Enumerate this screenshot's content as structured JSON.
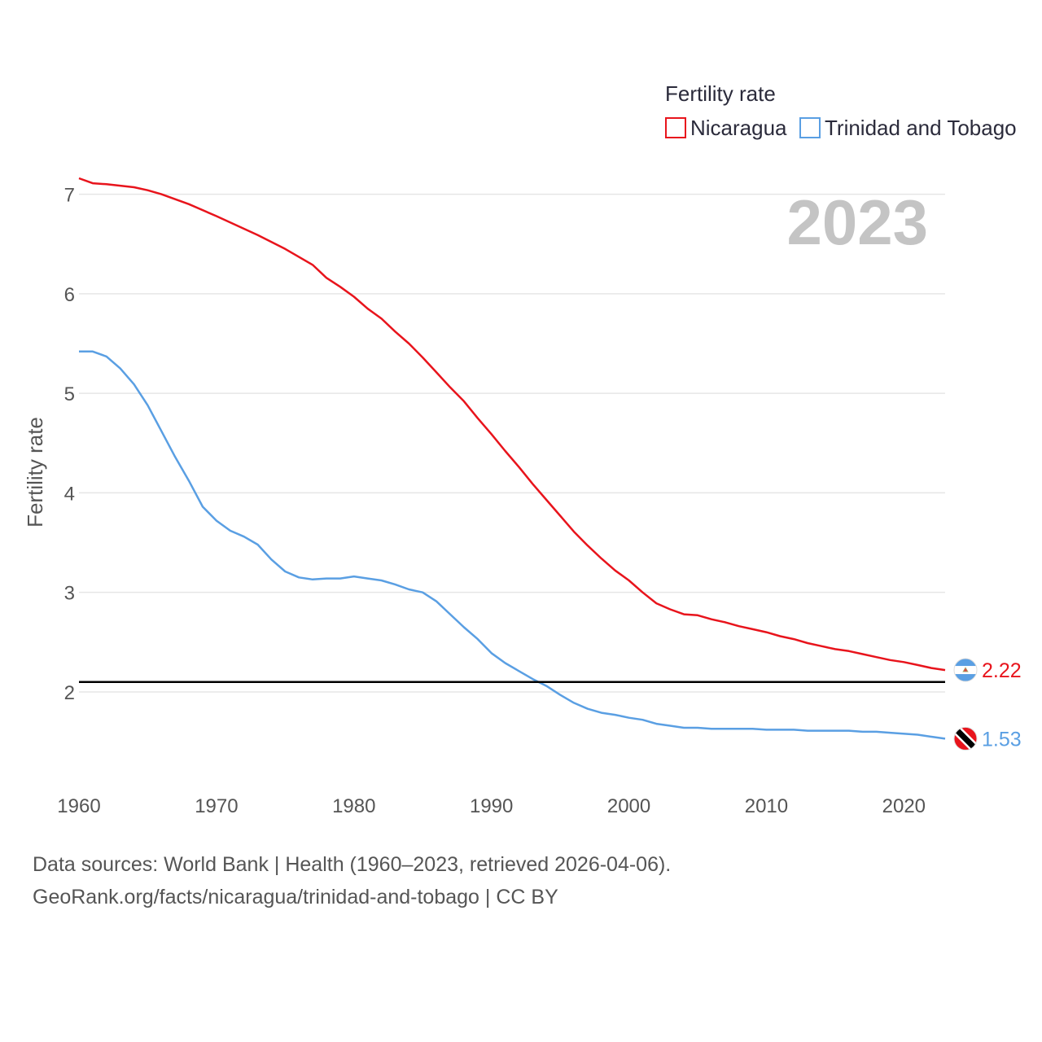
{
  "chart_data": {
    "type": "line",
    "title": "Fertility rate",
    "ylabel": "Fertility rate",
    "xlabel": "",
    "year_display": "2023",
    "xlim": [
      1960,
      2023
    ],
    "ylim": [
      1.1,
      7.25
    ],
    "x_ticks": [
      1960,
      1970,
      1980,
      1990,
      2000,
      2010,
      2020
    ],
    "y_ticks": [
      2,
      3,
      4,
      5,
      6,
      7
    ],
    "reference_line": 2.1,
    "grid": true,
    "legend_position": "top-right",
    "series": [
      {
        "name": "Nicaragua",
        "color": "#e8141c",
        "end_label": "2.22",
        "flag": "nicaragua-flag",
        "points": [
          [
            1960,
            7.16
          ],
          [
            1961,
            7.11
          ],
          [
            1962,
            7.1
          ],
          [
            1964,
            7.07
          ],
          [
            1965,
            7.04
          ],
          [
            1966,
            7.0
          ],
          [
            1967,
            6.95
          ],
          [
            1968,
            6.9
          ],
          [
            1970,
            6.78
          ],
          [
            1973,
            6.59
          ],
          [
            1975,
            6.45
          ],
          [
            1977,
            6.29
          ],
          [
            1978,
            6.16
          ],
          [
            1979,
            6.07
          ],
          [
            1980,
            5.97
          ],
          [
            1981,
            5.85
          ],
          [
            1982,
            5.75
          ],
          [
            1983,
            5.62
          ],
          [
            1984,
            5.5
          ],
          [
            1985,
            5.36
          ],
          [
            1986,
            5.21
          ],
          [
            1987,
            5.06
          ],
          [
            1988,
            4.92
          ],
          [
            1989,
            4.75
          ],
          [
            1990,
            4.59
          ],
          [
            1991,
            4.42
          ],
          [
            1992,
            4.26
          ],
          [
            1993,
            4.09
          ],
          [
            1994,
            3.93
          ],
          [
            1995,
            3.77
          ],
          [
            1996,
            3.61
          ],
          [
            1997,
            3.47
          ],
          [
            1998,
            3.34
          ],
          [
            1999,
            3.22
          ],
          [
            2000,
            3.12
          ],
          [
            2001,
            3.0
          ],
          [
            2002,
            2.89
          ],
          [
            2003,
            2.83
          ],
          [
            2004,
            2.78
          ],
          [
            2005,
            2.77
          ],
          [
            2006,
            2.73
          ],
          [
            2007,
            2.7
          ],
          [
            2008,
            2.66
          ],
          [
            2009,
            2.63
          ],
          [
            2010,
            2.6
          ],
          [
            2011,
            2.56
          ],
          [
            2012,
            2.53
          ],
          [
            2013,
            2.49
          ],
          [
            2014,
            2.46
          ],
          [
            2015,
            2.43
          ],
          [
            2016,
            2.41
          ],
          [
            2017,
            2.38
          ],
          [
            2018,
            2.35
          ],
          [
            2019,
            2.32
          ],
          [
            2020,
            2.3
          ],
          [
            2021,
            2.27
          ],
          [
            2022,
            2.24
          ],
          [
            2023,
            2.22
          ]
        ]
      },
      {
        "name": "Trinidad and Tobago",
        "color": "#5a9fe3",
        "end_label": "1.53",
        "flag": "trinidad-and-tobago-flag",
        "points": [
          [
            1960,
            5.42
          ],
          [
            1961,
            5.42
          ],
          [
            1962,
            5.37
          ],
          [
            1963,
            5.25
          ],
          [
            1964,
            5.09
          ],
          [
            1965,
            4.88
          ],
          [
            1966,
            4.62
          ],
          [
            1967,
            4.36
          ],
          [
            1968,
            4.12
          ],
          [
            1969,
            3.86
          ],
          [
            1970,
            3.72
          ],
          [
            1971,
            3.62
          ],
          [
            1972,
            3.56
          ],
          [
            1973,
            3.48
          ],
          [
            1974,
            3.33
          ],
          [
            1975,
            3.21
          ],
          [
            1976,
            3.15
          ],
          [
            1977,
            3.13
          ],
          [
            1978,
            3.14
          ],
          [
            1979,
            3.14
          ],
          [
            1980,
            3.16
          ],
          [
            1981,
            3.14
          ],
          [
            1982,
            3.12
          ],
          [
            1983,
            3.08
          ],
          [
            1984,
            3.03
          ],
          [
            1985,
            3.0
          ],
          [
            1986,
            2.91
          ],
          [
            1987,
            2.78
          ],
          [
            1988,
            2.65
          ],
          [
            1989,
            2.53
          ],
          [
            1990,
            2.39
          ],
          [
            1991,
            2.29
          ],
          [
            1992,
            2.21
          ],
          [
            1993,
            2.13
          ],
          [
            1994,
            2.06
          ],
          [
            1995,
            1.97
          ],
          [
            1996,
            1.89
          ],
          [
            1997,
            1.83
          ],
          [
            1998,
            1.79
          ],
          [
            1999,
            1.77
          ],
          [
            2000,
            1.74
          ],
          [
            2001,
            1.72
          ],
          [
            2002,
            1.68
          ],
          [
            2003,
            1.66
          ],
          [
            2004,
            1.64
          ],
          [
            2005,
            1.64
          ],
          [
            2006,
            1.63
          ],
          [
            2008,
            1.63
          ],
          [
            2009,
            1.63
          ],
          [
            2010,
            1.62
          ],
          [
            2012,
            1.62
          ],
          [
            2013,
            1.61
          ],
          [
            2016,
            1.61
          ],
          [
            2017,
            1.6
          ],
          [
            2018,
            1.6
          ],
          [
            2019,
            1.59
          ],
          [
            2021,
            1.57
          ],
          [
            2022,
            1.55
          ],
          [
            2023,
            1.53
          ]
        ]
      }
    ]
  },
  "footer": {
    "source_line": "Data sources: World Bank | Health (1960–2023, retrieved 2026-04-06).",
    "url_line": "GeoRank.org/facts/nicaragua/trinidad-and-tobago | CC BY"
  }
}
